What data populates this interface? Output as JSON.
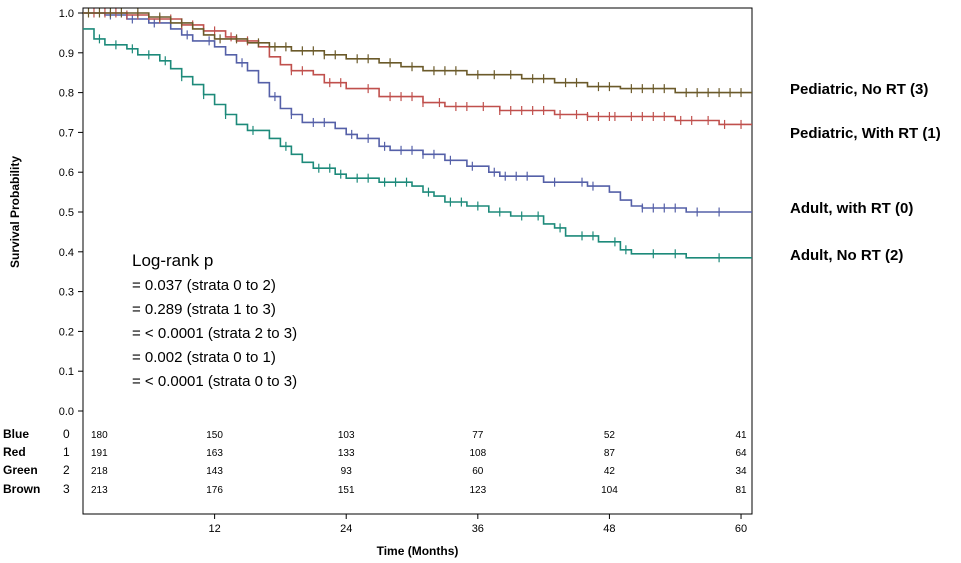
{
  "chart_data": {
    "type": "line",
    "xlabel": "Time (Months)",
    "ylabel": "Survival Probability",
    "xlim": [
      0,
      61
    ],
    "ylim": [
      0,
      1
    ],
    "x_ticks": [
      12,
      24,
      36,
      48,
      60
    ],
    "x_tick_labels": [
      "12",
      "24",
      "36",
      "48",
      "60"
    ],
    "y_ticks": [
      0.0,
      0.1,
      0.2,
      0.3,
      0.4,
      0.5,
      0.6,
      0.7,
      0.8,
      0.9,
      1.0
    ],
    "y_tick_labels": [
      "0.0",
      "0.1",
      "0.2",
      "0.3",
      "0.4",
      "0.5",
      "0.6",
      "0.7",
      "0.8",
      "0.9",
      "1.0"
    ],
    "series": [
      {
        "name": "Adult, with RT (0)",
        "risk_name": "Blue",
        "stratum": "0",
        "color": "#5560a8",
        "steps": [
          [
            0,
            1.0
          ],
          [
            2,
            0.995
          ],
          [
            4,
            0.985
          ],
          [
            6,
            0.975
          ],
          [
            8,
            0.96
          ],
          [
            9,
            0.945
          ],
          [
            10,
            0.93
          ],
          [
            12,
            0.915
          ],
          [
            13,
            0.895
          ],
          [
            14,
            0.875
          ],
          [
            15,
            0.855
          ],
          [
            16,
            0.825
          ],
          [
            17,
            0.79
          ],
          [
            18,
            0.76
          ],
          [
            19,
            0.745
          ],
          [
            20,
            0.725
          ],
          [
            23,
            0.71
          ],
          [
            24,
            0.695
          ],
          [
            25,
            0.685
          ],
          [
            27,
            0.665
          ],
          [
            28,
            0.655
          ],
          [
            31,
            0.645
          ],
          [
            33,
            0.63
          ],
          [
            35,
            0.615
          ],
          [
            37,
            0.6
          ],
          [
            38,
            0.59
          ],
          [
            42,
            0.575
          ],
          [
            46,
            0.565
          ],
          [
            48,
            0.55
          ],
          [
            49,
            0.53
          ],
          [
            50,
            0.515
          ],
          [
            51,
            0.51
          ],
          [
            55,
            0.5
          ],
          [
            61,
            0.5
          ]
        ],
        "censor_x": [
          2.5,
          4.5,
          6.5,
          9.5,
          11.5,
          14.5,
          17.5,
          19,
          21,
          22,
          24.5,
          26,
          27.5,
          29,
          30,
          31,
          32,
          33.5,
          35.5,
          37.5,
          38.5,
          39.5,
          40.5,
          43,
          45.5,
          46.5,
          51,
          52,
          53,
          54,
          56,
          58
        ],
        "end_label": "Adult, with RT (0)"
      },
      {
        "name": "Pediatric, With RT (1)",
        "risk_name": "Red",
        "stratum": "1",
        "color": "#c0504d",
        "steps": [
          [
            0,
            1.0
          ],
          [
            4,
            0.995
          ],
          [
            6,
            0.985
          ],
          [
            9,
            0.97
          ],
          [
            11,
            0.955
          ],
          [
            13,
            0.94
          ],
          [
            14,
            0.93
          ],
          [
            16,
            0.915
          ],
          [
            17,
            0.89
          ],
          [
            18,
            0.87
          ],
          [
            19,
            0.855
          ],
          [
            21,
            0.845
          ],
          [
            22,
            0.825
          ],
          [
            24,
            0.81
          ],
          [
            27,
            0.79
          ],
          [
            31,
            0.775
          ],
          [
            33,
            0.765
          ],
          [
            38,
            0.755
          ],
          [
            43,
            0.745
          ],
          [
            46,
            0.74
          ],
          [
            54,
            0.73
          ],
          [
            58,
            0.72
          ],
          [
            61,
            0.72
          ]
        ],
        "censor_x": [
          1,
          2,
          3,
          4,
          5,
          7,
          8,
          9,
          10,
          12,
          13.5,
          15,
          19,
          20,
          22.5,
          23.5,
          26,
          28,
          29,
          30,
          31,
          32.5,
          34,
          35,
          36.5,
          38,
          39,
          40,
          41,
          42,
          43.5,
          45,
          46,
          47,
          48,
          48.5,
          50,
          51,
          52,
          53,
          54.5,
          55.5,
          57,
          58.5,
          60
        ],
        "end_label": "Pediatric, With RT (1)"
      },
      {
        "name": "Adult, No RT (2)",
        "risk_name": "Green",
        "stratum": "2",
        "color": "#1d8a7a",
        "steps": [
          [
            0,
            0.96
          ],
          [
            1,
            0.935
          ],
          [
            2,
            0.92
          ],
          [
            4,
            0.91
          ],
          [
            5,
            0.895
          ],
          [
            7,
            0.88
          ],
          [
            8,
            0.86
          ],
          [
            9,
            0.84
          ],
          [
            10,
            0.82
          ],
          [
            11,
            0.795
          ],
          [
            12,
            0.77
          ],
          [
            13,
            0.745
          ],
          [
            14,
            0.72
          ],
          [
            15,
            0.705
          ],
          [
            17,
            0.685
          ],
          [
            18,
            0.665
          ],
          [
            19,
            0.645
          ],
          [
            20,
            0.625
          ],
          [
            21,
            0.61
          ],
          [
            23,
            0.595
          ],
          [
            24,
            0.585
          ],
          [
            27,
            0.575
          ],
          [
            30,
            0.565
          ],
          [
            31,
            0.55
          ],
          [
            32,
            0.54
          ],
          [
            33,
            0.525
          ],
          [
            35,
            0.515
          ],
          [
            37,
            0.5
          ],
          [
            39,
            0.49
          ],
          [
            42,
            0.47
          ],
          [
            43,
            0.46
          ],
          [
            44,
            0.44
          ],
          [
            47,
            0.425
          ],
          [
            49,
            0.405
          ],
          [
            50,
            0.395
          ],
          [
            55,
            0.385
          ],
          [
            61,
            0.385
          ]
        ],
        "censor_x": [
          1.5,
          3,
          4.5,
          6,
          7.5,
          9,
          11,
          13,
          15.5,
          18.5,
          21.5,
          22.5,
          23.5,
          25,
          26,
          27.5,
          28.5,
          29.5,
          31.5,
          33.5,
          34.5,
          36,
          38,
          40,
          41.5,
          43.5,
          45.5,
          46.5,
          48.5,
          49.5,
          52,
          54,
          58
        ],
        "end_label": "Adult, No RT (2)"
      },
      {
        "name": "Pediatric, No RT (3)",
        "risk_name": "Brown",
        "stratum": "3",
        "color": "#6b5a2a",
        "steps": [
          [
            0,
            1.0
          ],
          [
            6,
            0.99
          ],
          [
            8,
            0.975
          ],
          [
            10,
            0.96
          ],
          [
            11,
            0.945
          ],
          [
            12,
            0.935
          ],
          [
            15,
            0.925
          ],
          [
            17,
            0.915
          ],
          [
            19,
            0.905
          ],
          [
            22,
            0.895
          ],
          [
            24,
            0.885
          ],
          [
            27,
            0.875
          ],
          [
            29,
            0.865
          ],
          [
            31,
            0.855
          ],
          [
            35,
            0.845
          ],
          [
            40,
            0.835
          ],
          [
            43,
            0.825
          ],
          [
            46,
            0.815
          ],
          [
            49,
            0.81
          ],
          [
            54,
            0.8
          ],
          [
            61,
            0.8
          ]
        ],
        "censor_x": [
          0.5,
          1.5,
          2.5,
          3.5,
          5,
          7,
          9,
          12.5,
          14,
          16,
          17.5,
          18.5,
          20,
          21,
          22,
          23,
          25,
          26,
          28,
          30,
          32,
          33,
          34,
          36,
          37.5,
          39,
          41,
          42,
          44,
          45,
          47,
          48,
          50,
          51,
          52,
          53,
          55,
          56,
          57,
          58,
          59,
          60
        ],
        "end_label": "Pediatric, No RT (3)"
      }
    ],
    "risk_table": {
      "times": [
        0,
        12,
        24,
        36,
        48,
        60
      ],
      "rows": [
        {
          "name": "Blue",
          "stratum": "0",
          "values": [
            "180",
            "150",
            "103",
            "77",
            "52",
            "41"
          ]
        },
        {
          "name": "Red",
          "stratum": "1",
          "values": [
            "191",
            "163",
            "133",
            "108",
            "87",
            "64"
          ]
        },
        {
          "name": "Green",
          "stratum": "2",
          "values": [
            "218",
            "143",
            "93",
            "60",
            "42",
            "34"
          ]
        },
        {
          "name": "Brown",
          "stratum": "3",
          "values": [
            "213",
            "176",
            "151",
            "123",
            "104",
            "81"
          ]
        }
      ]
    },
    "annotation": [
      "Log-rank p",
      "= 0.037 (strata 0 to 2)",
      "= 0.289 (strata 1 to 3)",
      "= < 0.0001 (strata 2 to 3)",
      "= 0.002 (strata 0 to 1)",
      "= < 0.0001 (strata 0 to 3)"
    ]
  }
}
